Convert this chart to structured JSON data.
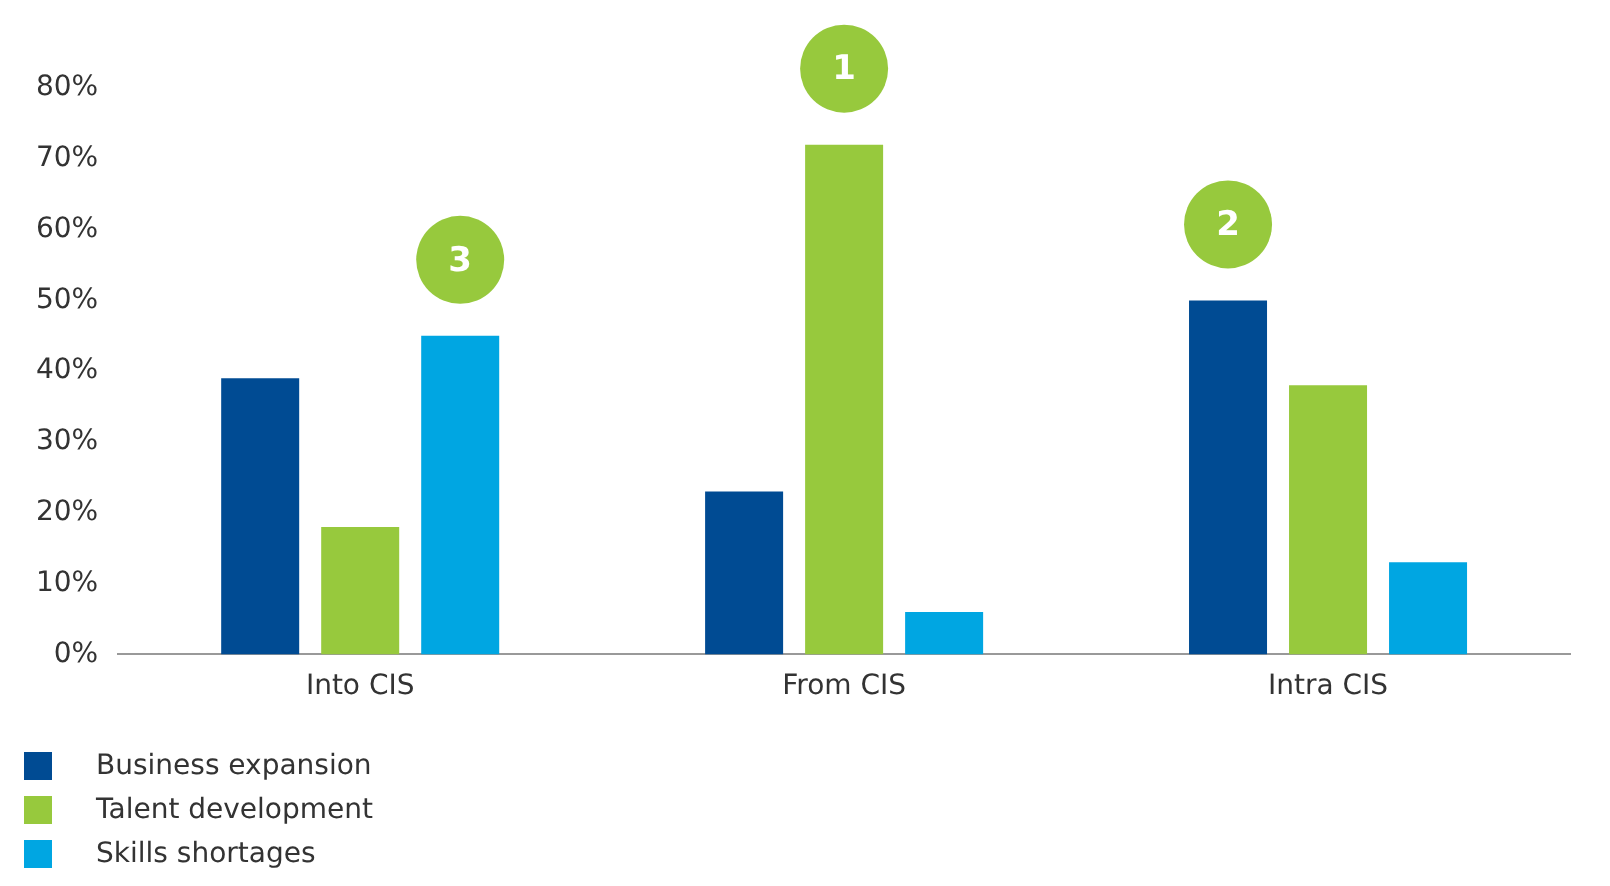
{
  "chart_data": {
    "type": "bar",
    "categories": [
      "Into CIS",
      "From CIS",
      "Intra CIS"
    ],
    "series": [
      {
        "name": "Business expansion",
        "color": "#004b93",
        "values": [
          39,
          23,
          50
        ]
      },
      {
        "name": "Talent development",
        "color": "#97c93d",
        "values": [
          18,
          72,
          38
        ]
      },
      {
        "name": "Skills shortages",
        "color": "#00a6e2",
        "values": [
          45,
          6,
          13
        ]
      }
    ],
    "ylim": [
      0,
      80
    ],
    "yticks": [
      {
        "value": 0,
        "label": "0%"
      },
      {
        "value": 10,
        "label": "10%"
      },
      {
        "value": 20,
        "label": "20%"
      },
      {
        "value": 30,
        "label": "30%"
      },
      {
        "value": 40,
        "label": "40%"
      },
      {
        "value": 50,
        "label": "50%"
      },
      {
        "value": 60,
        "label": "60%"
      },
      {
        "value": 70,
        "label": "70%"
      },
      {
        "value": 80,
        "label": "80%"
      }
    ],
    "annotations": [
      "1",
      "2",
      "3"
    ],
    "grid": false,
    "legend": "bottom left"
  }
}
